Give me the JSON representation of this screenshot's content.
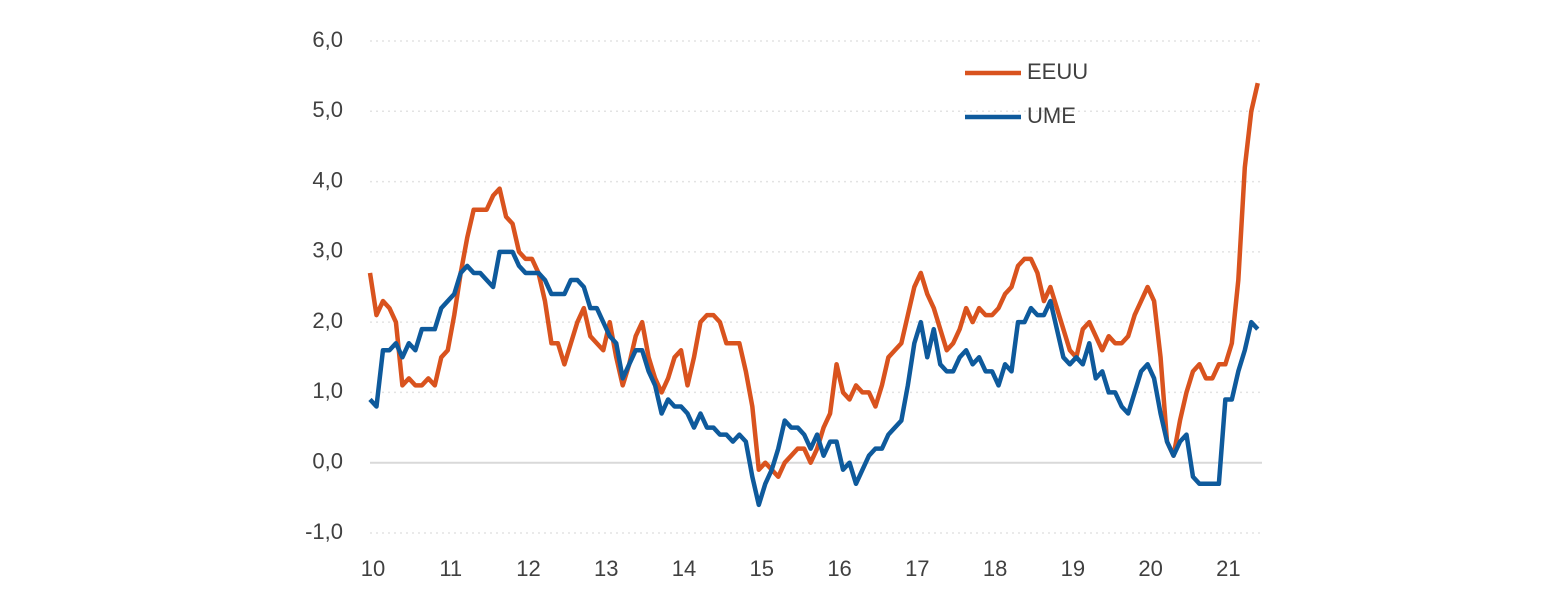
{
  "chart_data": {
    "type": "line",
    "categories": [
      "10",
      null,
      null,
      null,
      null,
      null,
      null,
      null,
      null,
      null,
      null,
      null,
      "11",
      null,
      null,
      null,
      null,
      null,
      null,
      null,
      null,
      null,
      null,
      null,
      "12",
      null,
      null,
      null,
      null,
      null,
      null,
      null,
      null,
      null,
      null,
      null,
      "13",
      null,
      null,
      null,
      null,
      null,
      null,
      null,
      null,
      null,
      null,
      null,
      "14",
      null,
      null,
      null,
      null,
      null,
      null,
      null,
      null,
      null,
      null,
      null,
      "15",
      null,
      null,
      null,
      null,
      null,
      null,
      null,
      null,
      null,
      null,
      null,
      "16",
      null,
      null,
      null,
      null,
      null,
      null,
      null,
      null,
      null,
      null,
      null,
      "17",
      null,
      null,
      null,
      null,
      null,
      null,
      null,
      null,
      null,
      null,
      null,
      "18",
      null,
      null,
      null,
      null,
      null,
      null,
      null,
      null,
      null,
      null,
      null,
      "19",
      null,
      null,
      null,
      null,
      null,
      null,
      null,
      null,
      null,
      null,
      null,
      "20",
      null,
      null,
      null,
      null,
      null,
      null,
      null,
      null,
      null,
      null,
      null,
      "21",
      null,
      null,
      null,
      null,
      null
    ],
    "series": [
      {
        "name": "EEUU",
        "color": "#d9531e",
        "values": [
          2.7,
          2.1,
          2.3,
          2.2,
          2.0,
          1.1,
          1.2,
          1.1,
          1.1,
          1.2,
          1.1,
          1.5,
          1.6,
          2.1,
          2.7,
          3.2,
          3.6,
          3.6,
          3.6,
          3.8,
          3.9,
          3.5,
          3.4,
          3.0,
          2.9,
          2.9,
          2.7,
          2.3,
          1.7,
          1.7,
          1.4,
          1.7,
          2.0,
          2.2,
          1.8,
          1.7,
          1.6,
          2.0,
          1.5,
          1.1,
          1.4,
          1.8,
          2.0,
          1.5,
          1.2,
          1.0,
          1.2,
          1.5,
          1.6,
          1.1,
          1.5,
          2.0,
          2.1,
          2.1,
          2.0,
          1.7,
          1.7,
          1.7,
          1.3,
          0.8,
          -0.1,
          0.0,
          -0.1,
          -0.2,
          0.0,
          0.1,
          0.2,
          0.2,
          0.0,
          0.2,
          0.5,
          0.7,
          1.4,
          1.0,
          0.9,
          1.1,
          1.0,
          1.0,
          0.8,
          1.1,
          1.5,
          1.6,
          1.7,
          2.1,
          2.5,
          2.7,
          2.4,
          2.2,
          1.9,
          1.6,
          1.7,
          1.9,
          2.2,
          2.0,
          2.2,
          2.1,
          2.1,
          2.2,
          2.4,
          2.5,
          2.8,
          2.9,
          2.9,
          2.7,
          2.3,
          2.5,
          2.2,
          1.9,
          1.6,
          1.5,
          1.9,
          2.0,
          1.8,
          1.6,
          1.8,
          1.7,
          1.7,
          1.8,
          2.1,
          2.3,
          2.5,
          2.3,
          1.5,
          0.3,
          0.1,
          0.6,
          1.0,
          1.3,
          1.4,
          1.2,
          1.2,
          1.4,
          1.4,
          1.7,
          2.6,
          4.2,
          5.0,
          5.4
        ]
      },
      {
        "name": "UME",
        "color": "#0e5a9c",
        "values": [
          0.9,
          0.8,
          1.6,
          1.6,
          1.7,
          1.5,
          1.7,
          1.6,
          1.9,
          1.9,
          1.9,
          2.2,
          2.3,
          2.4,
          2.7,
          2.8,
          2.7,
          2.7,
          2.6,
          2.5,
          3.0,
          3.0,
          3.0,
          2.8,
          2.7,
          2.7,
          2.7,
          2.6,
          2.4,
          2.4,
          2.4,
          2.6,
          2.6,
          2.5,
          2.2,
          2.2,
          2.0,
          1.8,
          1.7,
          1.2,
          1.4,
          1.6,
          1.6,
          1.3,
          1.1,
          0.7,
          0.9,
          0.8,
          0.8,
          0.7,
          0.5,
          0.7,
          0.5,
          0.5,
          0.4,
          0.4,
          0.3,
          0.4,
          0.3,
          -0.2,
          -0.6,
          -0.3,
          -0.1,
          0.2,
          0.6,
          0.5,
          0.5,
          0.4,
          0.2,
          0.4,
          0.1,
          0.3,
          0.3,
          -0.1,
          0.0,
          -0.3,
          -0.1,
          0.1,
          0.2,
          0.2,
          0.4,
          0.5,
          0.6,
          1.1,
          1.7,
          2.0,
          1.5,
          1.9,
          1.4,
          1.3,
          1.3,
          1.5,
          1.6,
          1.4,
          1.5,
          1.3,
          1.3,
          1.1,
          1.4,
          1.3,
          2.0,
          2.0,
          2.2,
          2.1,
          2.1,
          2.3,
          1.9,
          1.5,
          1.4,
          1.5,
          1.4,
          1.7,
          1.2,
          1.3,
          1.0,
          1.0,
          0.8,
          0.7,
          1.0,
          1.3,
          1.4,
          1.2,
          0.7,
          0.3,
          0.1,
          0.3,
          0.4,
          -0.2,
          -0.3,
          -0.3,
          -0.3,
          -0.3,
          0.9,
          0.9,
          1.3,
          1.6,
          2.0,
          1.9
        ]
      }
    ],
    "ylim": [
      -1,
      6
    ],
    "yticks": [
      {
        "value": -1,
        "label": "-1,0"
      },
      {
        "value": 0,
        "label": "0,0"
      },
      {
        "value": 1,
        "label": "1,0"
      },
      {
        "value": 2,
        "label": "2,0"
      },
      {
        "value": 3,
        "label": "3,0"
      },
      {
        "value": 4,
        "label": "4,0"
      },
      {
        "value": 5,
        "label": "5,0"
      },
      {
        "value": 6,
        "label": "6,0"
      }
    ],
    "grid": true,
    "legend": "upper right"
  }
}
